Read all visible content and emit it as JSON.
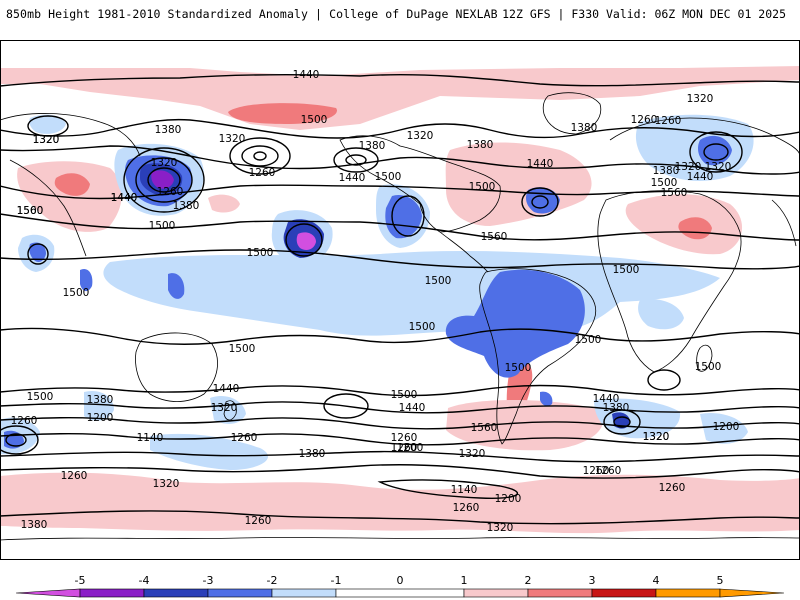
{
  "header": {
    "title": "850mb Height 1981-2010 Standardized Anomaly | College of DuPage NEXLAB",
    "run_info": "12Z GFS | F330 Valid: 06Z MON DEC 01 2025"
  },
  "colors": {
    "neg5": "#d24fe0",
    "neg4": "#8a1fc7",
    "neg3": "#2a3fb8",
    "neg2": "#4f6fe6",
    "neg1": "#c2ddfb",
    "pos1": "#f8c9cc",
    "pos2": "#f07a7c",
    "pos3": "#c81515",
    "pos4": "#ff9a00",
    "land": "#000000"
  },
  "contour_labels": [
    {
      "id": "c1",
      "text": "1440"
    },
    {
      "id": "c2",
      "text": "1500"
    },
    {
      "id": "c3",
      "text": "1320"
    },
    {
      "id": "c4",
      "text": "1380"
    },
    {
      "id": "c5",
      "text": "1320"
    },
    {
      "id": "c6",
      "text": "1260"
    },
    {
      "id": "c7",
      "text": "1380"
    },
    {
      "id": "c8",
      "text": "1320"
    },
    {
      "id": "c9",
      "text": "1380"
    },
    {
      "id": "c10",
      "text": "1260"
    },
    {
      "id": "c11",
      "text": "1320"
    },
    {
      "id": "c12",
      "text": "1380"
    },
    {
      "id": "c13",
      "text": "1440"
    },
    {
      "id": "c14",
      "text": "1500"
    },
    {
      "id": "c15",
      "text": "1440"
    },
    {
      "id": "c16",
      "text": "1380"
    },
    {
      "id": "c17",
      "text": "1320"
    },
    {
      "id": "c18",
      "text": "1260"
    },
    {
      "id": "c19",
      "text": "1380"
    },
    {
      "id": "c20",
      "text": "1320"
    },
    {
      "id": "c21",
      "text": "1440"
    },
    {
      "id": "c22",
      "text": "1500"
    },
    {
      "id": "c23",
      "text": "1560"
    },
    {
      "id": "c24",
      "text": "1440"
    },
    {
      "id": "c25",
      "text": "1500"
    },
    {
      "id": "c26",
      "text": "1320"
    },
    {
      "id": "c27",
      "text": "1500"
    },
    {
      "id": "c28",
      "text": "1560"
    },
    {
      "id": "c29",
      "text": "1440"
    },
    {
      "id": "c30",
      "text": "1260"
    },
    {
      "id": "c31",
      "text": "1500"
    },
    {
      "id": "c32",
      "text": "1560"
    },
    {
      "id": "c33",
      "text": "1500"
    },
    {
      "id": "c34",
      "text": "1500"
    },
    {
      "id": "c35",
      "text": "1500"
    },
    {
      "id": "c36",
      "text": "1500"
    },
    {
      "id": "c37",
      "text": "1500"
    },
    {
      "id": "c38",
      "text": "1500"
    },
    {
      "id": "c39",
      "text": "1500"
    },
    {
      "id": "c40",
      "text": "1500"
    },
    {
      "id": "c41",
      "text": "1500"
    },
    {
      "id": "c42",
      "text": "1440"
    },
    {
      "id": "c43",
      "text": "1320"
    },
    {
      "id": "c44",
      "text": "1260"
    },
    {
      "id": "c45",
      "text": "1380"
    },
    {
      "id": "c46",
      "text": "1200"
    },
    {
      "id": "c47",
      "text": "1140"
    },
    {
      "id": "c48",
      "text": "1260"
    },
    {
      "id": "c49",
      "text": "1380"
    },
    {
      "id": "c50",
      "text": "1260"
    },
    {
      "id": "c51",
      "text": "1320"
    },
    {
      "id": "c52",
      "text": "1260"
    },
    {
      "id": "c53",
      "text": "1440"
    },
    {
      "id": "c54",
      "text": "1500"
    },
    {
      "id": "c55",
      "text": "1260"
    },
    {
      "id": "c56",
      "text": "1200"
    },
    {
      "id": "c57",
      "text": "1320"
    },
    {
      "id": "c58",
      "text": "1560"
    },
    {
      "id": "c59",
      "text": "1140"
    },
    {
      "id": "c60",
      "text": "1200"
    },
    {
      "id": "c61",
      "text": "1260"
    },
    {
      "id": "c62",
      "text": "1320"
    },
    {
      "id": "c63",
      "text": "1260"
    },
    {
      "id": "c64",
      "text": "1260"
    },
    {
      "id": "c65",
      "text": "1440"
    },
    {
      "id": "c66",
      "text": "1380"
    },
    {
      "id": "c67",
      "text": "1320"
    },
    {
      "id": "c68",
      "text": "1200"
    },
    {
      "id": "c69",
      "text": "1260"
    },
    {
      "id": "c70",
      "text": "1380"
    },
    {
      "id": "c71",
      "text": "1320"
    },
    {
      "id": "c72",
      "text": "1260"
    },
    {
      "id": "c73",
      "text": "1320"
    },
    {
      "id": "c74",
      "text": "1500"
    }
  ],
  "colorbar": {
    "ticks": [
      "-5",
      "-4",
      "-3",
      "-2",
      "-1",
      "0",
      "1",
      "2",
      "3",
      "4",
      "5"
    ]
  }
}
